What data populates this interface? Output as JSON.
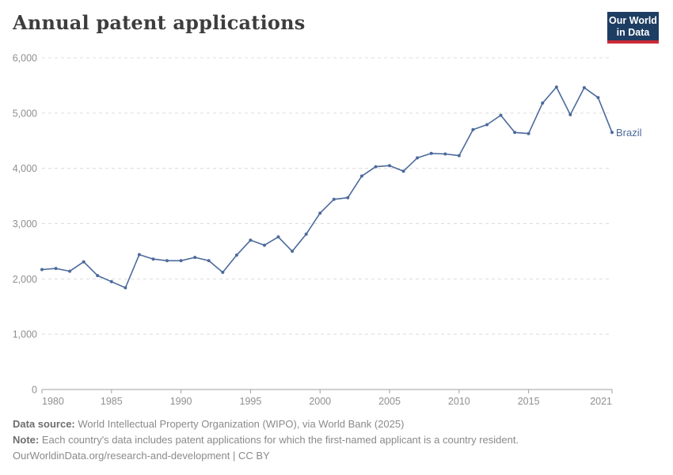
{
  "header": {
    "title": "Annual patent applications",
    "logo": {
      "line1": "Our World",
      "line2": "in Data",
      "bg_color": "#1d3d63",
      "accent_color": "#cc2a36"
    }
  },
  "chart_data": {
    "type": "line",
    "title": "Annual patent applications",
    "xlabel": "",
    "ylabel": "",
    "xlim": [
      1980,
      2021
    ],
    "ylim": [
      0,
      6000
    ],
    "x_tick_labels": [
      "1980",
      "1985",
      "1990",
      "1995",
      "2000",
      "2005",
      "2010",
      "2015",
      "2021"
    ],
    "x_ticks": [
      1980,
      1985,
      1990,
      1995,
      2000,
      2005,
      2010,
      2015,
      2021
    ],
    "y_ticks": [
      0,
      1000,
      2000,
      3000,
      4000,
      5000,
      6000
    ],
    "grid": "horizontal-dashed",
    "legend_position": "end-of-line-label",
    "series": [
      {
        "name": "Brazil",
        "color": "#4C6A9C",
        "x": [
          1980,
          1981,
          1982,
          1983,
          1984,
          1985,
          1986,
          1987,
          1988,
          1989,
          1990,
          1991,
          1992,
          1993,
          1994,
          1995,
          1996,
          1997,
          1998,
          1999,
          2000,
          2001,
          2002,
          2003,
          2004,
          2005,
          2006,
          2007,
          2008,
          2009,
          2010,
          2011,
          2012,
          2013,
          2014,
          2015,
          2016,
          2017,
          2018,
          2019,
          2020,
          2021
        ],
        "values": [
          2170,
          2190,
          2140,
          2310,
          2060,
          1950,
          1840,
          2440,
          2360,
          2330,
          2330,
          2390,
          2330,
          2120,
          2430,
          2700,
          2610,
          2760,
          2500,
          2810,
          3190,
          3440,
          3470,
          3860,
          4030,
          4050,
          3950,
          4190,
          4270,
          4260,
          4230,
          4700,
          4790,
          4960,
          4650,
          4630,
          5180,
          5470,
          4970,
          5460,
          5280,
          4650
        ]
      }
    ]
  },
  "footer": {
    "data_source_label": "Data source:",
    "data_source_text": " World Intellectual Property Organization (WIPO), via World Bank (2025)",
    "note_label": "Note:",
    "note_text": " Each country's data includes patent applications for which the first-named applicant is a country resident.",
    "link": "OurWorldinData.org/research-and-development",
    "license_suffix": " | CC BY"
  },
  "colors": {
    "axis_text": "#8f8f8f",
    "axis_line": "#a1a1a1",
    "gridline": "#dcdcdc"
  }
}
